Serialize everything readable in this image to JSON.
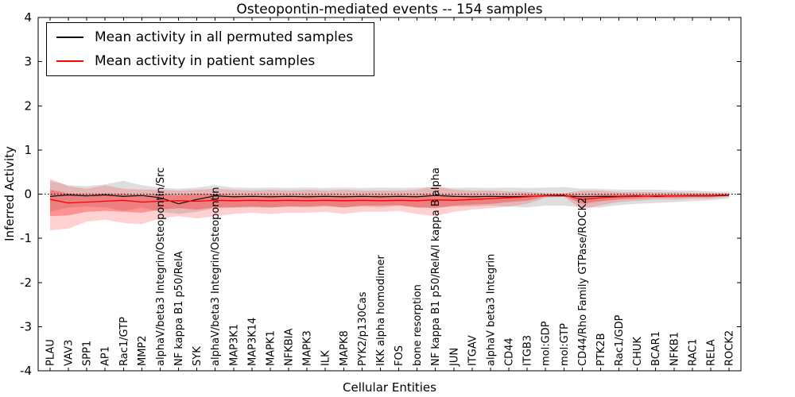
{
  "figure": {
    "title": "Osteopontin-mediated events -- 154 samples",
    "xlabel": "Cellular Entities",
    "ylabel": "Inferred Activity"
  },
  "legend": {
    "entries": [
      {
        "label": "Mean activity in all permuted samples",
        "color": "#000000"
      },
      {
        "label": "Mean activity in patient samples",
        "color": "#ff0000"
      }
    ]
  },
  "chart_data": {
    "type": "line",
    "title": "Osteopontin-mediated events -- 154 samples",
    "xlabel": "Cellular Entities",
    "ylabel": "Inferred Activity",
    "ylim": [
      -4,
      4
    ],
    "yticks": [
      -4,
      -3,
      -2,
      -1,
      0,
      1,
      2,
      3,
      4
    ],
    "grid": false,
    "legend_position": "upper left",
    "categories": [
      "PLAU",
      "VAV3",
      "SPP1",
      "AP1",
      "Rac1/GTP",
      "MMP2",
      "alphaV/beta3 Integrin/Osteopontin/Src",
      "NF kappa B1 p50/RelA",
      "SYK",
      "alphaV/beta3 Integrin/Osteopontin",
      "MAP3K1",
      "MAP3K14",
      "MAPK1",
      "NFKBIA",
      "MAPK3",
      "ILK",
      "MAPK8",
      "PYK2/p130Cas",
      "IKK alpha homodimer",
      "FOS",
      "bone resorption",
      "NF kappa B1 p50/RelA/I kappa B alpha",
      "JUN",
      "ITGAV",
      "alphaV beta3 Integrin",
      "CD44",
      "ITGB3",
      "mol:GDP",
      "mol:GTP",
      "CD44/Rho Family GTPase/ROCK2",
      "PTK2B",
      "Rac1/GDP",
      "CHUK",
      "BCAR1",
      "NFKB1",
      "RAC1",
      "RELA",
      "ROCK2"
    ],
    "series": [
      {
        "name": "Mean activity in all permuted samples",
        "color": "#000000",
        "values": [
          -0.05,
          -0.02,
          -0.04,
          -0.02,
          -0.05,
          -0.03,
          -0.08,
          -0.22,
          -0.12,
          -0.04,
          -0.06,
          -0.05,
          -0.06,
          -0.05,
          -0.06,
          -0.05,
          -0.06,
          -0.05,
          -0.06,
          -0.05,
          -0.06,
          -0.03,
          -0.05,
          -0.06,
          -0.05,
          -0.06,
          -0.05,
          -0.04,
          -0.04,
          -0.06,
          -0.05,
          -0.05,
          -0.04,
          -0.05,
          -0.04,
          -0.04,
          -0.04,
          -0.03
        ]
      },
      {
        "name": "Mean activity in patient samples",
        "color": "#ff0000",
        "values": [
          -0.12,
          -0.2,
          -0.18,
          -0.16,
          -0.14,
          -0.18,
          -0.16,
          -0.15,
          -0.16,
          -0.14,
          -0.15,
          -0.14,
          -0.15,
          -0.14,
          -0.15,
          -0.14,
          -0.15,
          -0.14,
          -0.15,
          -0.14,
          -0.15,
          -0.13,
          -0.14,
          -0.12,
          -0.1,
          -0.08,
          -0.06,
          -0.03,
          -0.02,
          -0.12,
          -0.08,
          -0.06,
          -0.05,
          -0.04,
          -0.04,
          -0.03,
          -0.03,
          -0.02
        ]
      }
    ],
    "reference_line": {
      "y": 0,
      "style": "dotted",
      "color": "#000000"
    },
    "bands": [
      {
        "name": "permuted-range",
        "color": "#999999",
        "opacity": 0.32,
        "upper": [
          0.3,
          0.2,
          0.18,
          0.22,
          0.3,
          0.2,
          0.15,
          0.12,
          0.15,
          0.2,
          0.15,
          0.14,
          0.15,
          0.14,
          0.15,
          0.14,
          0.15,
          0.14,
          0.15,
          0.14,
          0.15,
          0.16,
          0.14,
          0.15,
          0.14,
          0.15,
          0.14,
          0.15,
          0.16,
          0.12,
          0.12,
          0.1,
          0.1,
          0.1,
          0.08,
          0.08,
          0.06,
          0.05
        ],
        "lower": [
          -0.4,
          -0.3,
          -0.28,
          -0.3,
          -0.38,
          -0.3,
          -0.4,
          -0.45,
          -0.4,
          -0.32,
          -0.3,
          -0.3,
          -0.3,
          -0.28,
          -0.3,
          -0.28,
          -0.3,
          -0.28,
          -0.3,
          -0.26,
          -0.3,
          -0.3,
          -0.28,
          -0.28,
          -0.26,
          -0.28,
          -0.3,
          -0.26,
          -0.26,
          -0.3,
          -0.3,
          -0.25,
          -0.22,
          -0.2,
          -0.18,
          -0.16,
          -0.14,
          -0.1
        ]
      },
      {
        "name": "patient-range-outer",
        "color": "#ff0000",
        "opacity": 0.18,
        "upper": [
          0.35,
          0.18,
          0.12,
          0.2,
          0.12,
          0.1,
          0.1,
          0.08,
          0.1,
          0.12,
          0.1,
          0.08,
          0.1,
          0.08,
          0.1,
          0.08,
          0.1,
          0.08,
          0.08,
          0.08,
          0.1,
          0.18,
          0.1,
          0.08,
          0.08,
          0.06,
          0.05,
          0.02,
          0.02,
          0.08,
          0.08,
          0.05,
          0.05,
          0.04,
          0.04,
          0.03,
          0.03,
          0.02
        ],
        "lower": [
          -0.82,
          -0.78,
          -0.62,
          -0.58,
          -0.65,
          -0.68,
          -0.55,
          -0.5,
          -0.55,
          -0.5,
          -0.45,
          -0.42,
          -0.45,
          -0.42,
          -0.42,
          -0.4,
          -0.45,
          -0.4,
          -0.4,
          -0.38,
          -0.45,
          -0.5,
          -0.4,
          -0.35,
          -0.32,
          -0.28,
          -0.22,
          -0.08,
          -0.06,
          -0.35,
          -0.25,
          -0.18,
          -0.15,
          -0.12,
          -0.12,
          -0.1,
          -0.1,
          -0.06
        ]
      },
      {
        "name": "patient-range-inner",
        "color": "#ff0000",
        "opacity": 0.3,
        "upper": [
          0.1,
          0.02,
          0.0,
          0.02,
          0.0,
          -0.02,
          0.0,
          -0.02,
          0.0,
          0.0,
          -0.02,
          -0.02,
          -0.02,
          -0.02,
          -0.02,
          -0.02,
          -0.02,
          -0.02,
          -0.02,
          -0.02,
          -0.02,
          0.0,
          -0.02,
          -0.02,
          -0.02,
          -0.02,
          -0.01,
          0.0,
          0.0,
          -0.02,
          -0.01,
          -0.01,
          -0.01,
          -0.01,
          -0.01,
          -0.01,
          -0.01,
          0.0
        ],
        "lower": [
          -0.5,
          -0.48,
          -0.4,
          -0.38,
          -0.4,
          -0.42,
          -0.35,
          -0.32,
          -0.35,
          -0.3,
          -0.3,
          -0.28,
          -0.3,
          -0.28,
          -0.28,
          -0.26,
          -0.3,
          -0.26,
          -0.26,
          -0.25,
          -0.3,
          -0.32,
          -0.26,
          -0.24,
          -0.22,
          -0.18,
          -0.15,
          -0.05,
          -0.04,
          -0.22,
          -0.16,
          -0.12,
          -0.1,
          -0.08,
          -0.08,
          -0.07,
          -0.07,
          -0.04
        ]
      }
    ]
  }
}
